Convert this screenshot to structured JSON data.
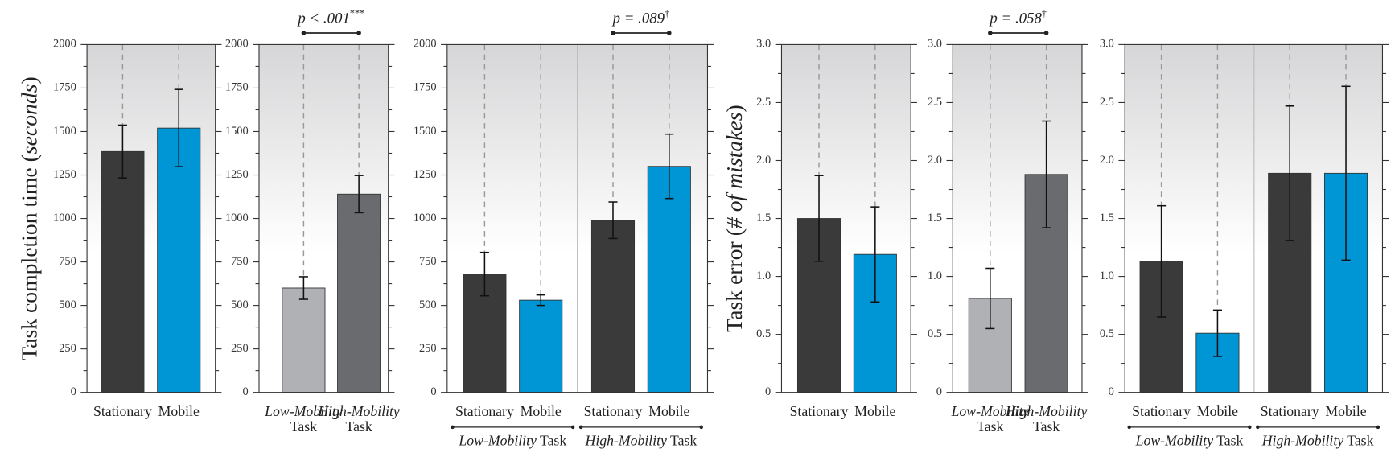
{
  "chart_data": [
    {
      "type": "bar",
      "ylabel": [
        "Task completion time (",
        "seconds",
        ")"
      ],
      "categories": [
        "Stationary",
        "Mobile"
      ],
      "values": [
        1385,
        1520
      ],
      "errors": [
        152,
        222
      ],
      "colors": [
        "#3a3a3b",
        "#0096d6"
      ],
      "ylim": [
        0,
        2000
      ],
      "yticks": [
        0,
        250,
        500,
        750,
        1000,
        1250,
        1500,
        1750,
        2000
      ]
    },
    {
      "type": "bar",
      "annotation": "p < .001",
      "annotation_sup": "***",
      "categories": [
        [
          "Low-Mobility",
          "Task"
        ],
        [
          "High-Mobility",
          "Task"
        ]
      ],
      "values": [
        600,
        1140
      ],
      "errors": [
        65,
        107
      ],
      "colors": [
        "#b0b1b4",
        "#6a6b6f"
      ],
      "ylim": [
        0,
        2000
      ],
      "yticks": [
        0,
        250,
        500,
        750,
        1000,
        1250,
        1500,
        1750,
        2000
      ]
    },
    {
      "type": "bar",
      "annotation": "p = .089",
      "annotation_sup": "†",
      "categories": [
        "Stationary",
        "Mobile",
        "Stationary",
        "Mobile"
      ],
      "values": [
        680,
        530,
        990,
        1300
      ],
      "errors": [
        125,
        30,
        105,
        185
      ],
      "colors": [
        "#3a3a3b",
        "#0096d6",
        "#3a3a3b",
        "#0096d6"
      ],
      "groups": [
        [
          "Low-Mobility",
          " Task"
        ],
        [
          "High-Mobility",
          " Task"
        ]
      ],
      "ylim": [
        0,
        2000
      ],
      "yticks": [
        0,
        250,
        500,
        750,
        1000,
        1250,
        1500,
        1750,
        2000
      ]
    },
    {
      "type": "bar",
      "ylabel": [
        "Task error (",
        "# of mistakes",
        ")"
      ],
      "categories": [
        "Stationary",
        "Mobile"
      ],
      "values": [
        1.5,
        1.19
      ],
      "errors": [
        0.37,
        0.41
      ],
      "colors": [
        "#3a3a3b",
        "#0096d6"
      ],
      "ylim": [
        0,
        3
      ],
      "yticks": [
        0,
        0.5,
        {
          "value": 1,
          "label": "1.0"
        },
        1.5,
        {
          "value": 2,
          "label": "2.0"
        },
        2.5,
        {
          "value": 3,
          "label": "3.0"
        }
      ]
    },
    {
      "type": "bar",
      "annotation": "p = .058",
      "annotation_sup": "†",
      "categories": [
        [
          "Low-Mobility",
          "Task"
        ],
        [
          "High-Mobility",
          "Task"
        ]
      ],
      "values": [
        0.81,
        1.88
      ],
      "errors": [
        0.26,
        0.46
      ],
      "colors": [
        "#b0b1b4",
        "#6a6b6f"
      ],
      "ylim": [
        0,
        3
      ],
      "yticks": [
        0,
        0.5,
        {
          "value": 1,
          "label": "1.0"
        },
        1.5,
        {
          "value": 2,
          "label": "2.0"
        },
        2.5,
        {
          "value": 3,
          "label": "3.0"
        }
      ]
    },
    {
      "type": "bar",
      "categories": [
        "Stationary",
        "Mobile",
        "Stationary",
        "Mobile"
      ],
      "values": [
        1.13,
        0.51,
        1.89,
        1.89
      ],
      "errors": [
        0.48,
        0.2,
        0.58,
        0.75
      ],
      "colors": [
        "#3a3a3b",
        "#0096d6",
        "#3a3a3b",
        "#0096d6"
      ],
      "groups": [
        [
          "Low-Mobility",
          " Task"
        ],
        [
          "High-Mobility",
          " Task"
        ]
      ],
      "ylim": [
        0,
        3
      ],
      "yticks": [
        0,
        0.5,
        {
          "value": 1,
          "label": "1.0"
        },
        1.5,
        {
          "value": 2,
          "label": "2.0"
        },
        2.5,
        {
          "value": 3,
          "label": "3.0"
        }
      ]
    }
  ]
}
